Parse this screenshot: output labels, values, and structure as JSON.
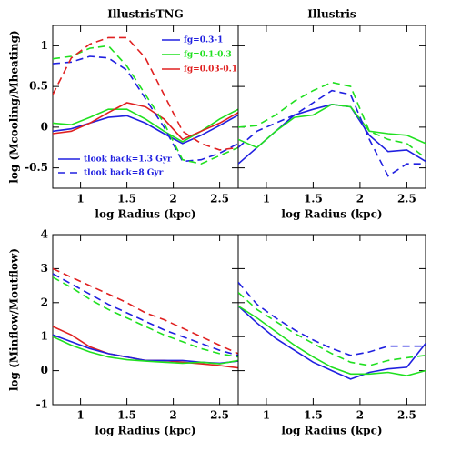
{
  "chart_data": [
    {
      "type": "line",
      "title": "IllustrisTNG",
      "xlabel": "log Radius (kpc)",
      "ylabel": "log (Mcooling/Mheating)",
      "x": [
        0.7,
        0.9,
        1.1,
        1.3,
        1.5,
        1.7,
        1.9,
        2.1,
        2.3,
        2.5,
        2.7
      ],
      "xlim": [
        0.7,
        2.7
      ],
      "xticks": [
        1,
        1.5,
        2,
        2.5
      ],
      "ylim": [
        -0.75,
        1.25
      ],
      "yticks": [
        -0.5,
        0,
        0.5,
        1
      ],
      "series": [
        {
          "color": "#2020e0",
          "dashed": false,
          "values": [
            -0.05,
            -0.02,
            0.05,
            0.12,
            0.14,
            0.05,
            -0.08,
            -0.2,
            -0.1,
            0.02,
            0.15
          ]
        },
        {
          "color": "#20e020",
          "dashed": false,
          "values": [
            0.05,
            0.03,
            0.12,
            0.22,
            0.22,
            0.1,
            -0.05,
            -0.18,
            -0.05,
            0.1,
            0.22
          ]
        },
        {
          "color": "#e02020",
          "dashed": false,
          "values": [
            -0.08,
            -0.05,
            0.05,
            0.18,
            0.3,
            0.25,
            0.1,
            -0.15,
            -0.05,
            0.05,
            0.18
          ]
        },
        {
          "color": "#2020e0",
          "dashed": true,
          "values": [
            0.78,
            0.8,
            0.87,
            0.85,
            0.7,
            0.35,
            0.0,
            -0.42,
            -0.4,
            -0.32,
            -0.2
          ]
        },
        {
          "color": "#20e020",
          "dashed": true,
          "values": [
            0.84,
            0.87,
            0.97,
            1.0,
            0.75,
            0.4,
            0.05,
            -0.4,
            -0.45,
            -0.35,
            -0.25
          ]
        },
        {
          "color": "#e02020",
          "dashed": true,
          "values": [
            0.4,
            0.85,
            1.02,
            1.1,
            1.1,
            0.85,
            0.4,
            -0.05,
            -0.2,
            -0.28,
            -0.25
          ]
        }
      ],
      "color_legend": [
        {
          "label": "fg=0.3-1",
          "color": "#2020e0"
        },
        {
          "label": "fg=0.1-0.3",
          "color": "#20e020"
        },
        {
          "label": "fg=0.03-0.1",
          "color": "#e02020"
        }
      ],
      "style_legend": [
        {
          "label": "tlook back=1.3 Gyr",
          "color": "#2020e0",
          "dashed": false
        },
        {
          "label": "tlook back=8 Gyr",
          "color": "#2020e0",
          "dashed": true
        }
      ]
    },
    {
      "type": "line",
      "title": "Illustris",
      "xlabel": "log Radius (kpc)",
      "x": [
        0.7,
        0.9,
        1.1,
        1.3,
        1.5,
        1.7,
        1.9,
        2.1,
        2.3,
        2.5,
        2.7
      ],
      "xlim": [
        0.7,
        2.7
      ],
      "xticks": [
        1,
        1.5,
        2,
        2.5
      ],
      "ylim": [
        -0.75,
        1.25
      ],
      "yticks": [
        -0.5,
        0,
        0.5,
        1
      ],
      "show_ytick_labels": false,
      "series": [
        {
          "color": "#2020e0",
          "dashed": false,
          "values": [
            -0.45,
            -0.25,
            -0.05,
            0.15,
            0.22,
            0.28,
            0.25,
            -0.1,
            -0.3,
            -0.28,
            -0.42
          ]
        },
        {
          "color": "#20e020",
          "dashed": false,
          "values": [
            -0.15,
            -0.25,
            -0.05,
            0.12,
            0.15,
            0.28,
            0.25,
            -0.05,
            -0.08,
            -0.1,
            -0.2
          ]
        },
        {
          "color": "#2020e0",
          "dashed": true,
          "values": [
            -0.25,
            -0.05,
            0.05,
            0.15,
            0.3,
            0.45,
            0.4,
            -0.15,
            -0.6,
            -0.45,
            -0.45
          ]
        },
        {
          "color": "#20e020",
          "dashed": true,
          "values": [
            0.0,
            0.02,
            0.15,
            0.32,
            0.45,
            0.55,
            0.5,
            -0.05,
            -0.15,
            -0.2,
            -0.38
          ]
        }
      ]
    },
    {
      "type": "line",
      "xlabel": "log Radius (kpc)",
      "ylabel": "log (Minflow/Moutflow)",
      "x": [
        0.7,
        0.9,
        1.1,
        1.3,
        1.5,
        1.7,
        1.9,
        2.1,
        2.3,
        2.5,
        2.7
      ],
      "xlim": [
        0.7,
        2.7
      ],
      "xticks": [
        1,
        1.5,
        2,
        2.5
      ],
      "ylim": [
        -1,
        4
      ],
      "yticks": [
        -1,
        0,
        1,
        2,
        3,
        4
      ],
      "series": [
        {
          "color": "#e02020",
          "dashed": true,
          "values": [
            3.0,
            2.75,
            2.5,
            2.25,
            2.0,
            1.7,
            1.5,
            1.25,
            1.0,
            0.75,
            0.5
          ]
        },
        {
          "color": "#2020e0",
          "dashed": true,
          "values": [
            2.85,
            2.55,
            2.25,
            1.95,
            1.7,
            1.45,
            1.2,
            1.0,
            0.8,
            0.6,
            0.45
          ]
        },
        {
          "color": "#20e020",
          "dashed": true,
          "values": [
            2.75,
            2.45,
            2.1,
            1.8,
            1.55,
            1.3,
            1.05,
            0.85,
            0.65,
            0.5,
            0.4
          ]
        },
        {
          "color": "#e02020",
          "dashed": false,
          "values": [
            1.3,
            1.05,
            0.7,
            0.5,
            0.4,
            0.3,
            0.3,
            0.25,
            0.2,
            0.15,
            0.08
          ]
        },
        {
          "color": "#2020e0",
          "dashed": false,
          "values": [
            1.05,
            0.85,
            0.65,
            0.5,
            0.4,
            0.3,
            0.3,
            0.3,
            0.25,
            0.22,
            0.28
          ]
        },
        {
          "color": "#20e020",
          "dashed": false,
          "values": [
            1.0,
            0.75,
            0.55,
            0.4,
            0.32,
            0.28,
            0.25,
            0.22,
            0.25,
            0.2,
            0.3
          ]
        }
      ]
    },
    {
      "type": "line",
      "xlabel": "log Radius (kpc)",
      "x": [
        0.7,
        0.9,
        1.1,
        1.3,
        1.5,
        1.7,
        1.9,
        2.1,
        2.3,
        2.5,
        2.7
      ],
      "xlim": [
        0.7,
        2.7
      ],
      "xticks": [
        1,
        1.5,
        2,
        2.5
      ],
      "ylim": [
        -1,
        4
      ],
      "yticks": [
        -1,
        0,
        1,
        2,
        3,
        4
      ],
      "show_ytick_labels": false,
      "series": [
        {
          "color": "#2020e0",
          "dashed": true,
          "values": [
            2.6,
            1.95,
            1.55,
            1.2,
            0.9,
            0.65,
            0.45,
            0.55,
            0.72,
            0.72,
            0.72
          ]
        },
        {
          "color": "#20e020",
          "dashed": true,
          "values": [
            2.3,
            1.8,
            1.45,
            1.1,
            0.8,
            0.5,
            0.25,
            0.15,
            0.3,
            0.38,
            0.45
          ]
        },
        {
          "color": "#2020e0",
          "dashed": false,
          "values": [
            1.9,
            1.4,
            0.95,
            0.6,
            0.25,
            0.0,
            -0.25,
            -0.05,
            0.05,
            0.1,
            0.8
          ]
        },
        {
          "color": "#20e020",
          "dashed": false,
          "values": [
            1.9,
            1.55,
            1.15,
            0.75,
            0.4,
            0.1,
            -0.1,
            -0.1,
            -0.05,
            -0.15,
            0.0
          ]
        }
      ]
    }
  ]
}
